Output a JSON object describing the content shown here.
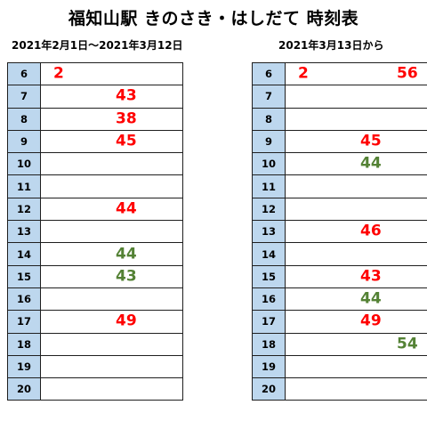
{
  "title": "福知山駅 きのさき・はしだて 時刻表",
  "colors": {
    "red": "#ff0000",
    "green": "#548235",
    "hour_bg": "#bdd7ee"
  },
  "timetables": [
    {
      "period": "2021年2月1日～2021年3月12日",
      "rows": [
        {
          "hour": "6",
          "departures": [
            {
              "minute": "2",
              "color": "red",
              "position": "first"
            }
          ]
        },
        {
          "hour": "7",
          "departures": [
            {
              "minute": "43",
              "color": "red",
              "position": "mid"
            }
          ]
        },
        {
          "hour": "8",
          "departures": [
            {
              "minute": "38",
              "color": "red",
              "position": "mid"
            }
          ]
        },
        {
          "hour": "9",
          "departures": [
            {
              "minute": "45",
              "color": "red",
              "position": "mid"
            }
          ]
        },
        {
          "hour": "10",
          "departures": []
        },
        {
          "hour": "11",
          "departures": []
        },
        {
          "hour": "12",
          "departures": [
            {
              "minute": "44",
              "color": "red",
              "position": "mid"
            }
          ]
        },
        {
          "hour": "13",
          "departures": []
        },
        {
          "hour": "14",
          "departures": [
            {
              "minute": "44",
              "color": "green",
              "position": "mid"
            }
          ]
        },
        {
          "hour": "15",
          "departures": [
            {
              "minute": "43",
              "color": "green",
              "position": "mid"
            }
          ]
        },
        {
          "hour": "16",
          "departures": []
        },
        {
          "hour": "17",
          "departures": [
            {
              "minute": "49",
              "color": "red",
              "position": "mid"
            }
          ]
        },
        {
          "hour": "18",
          "departures": []
        },
        {
          "hour": "19",
          "departures": []
        },
        {
          "hour": "20",
          "departures": []
        }
      ]
    },
    {
      "period": "2021年3月13日から",
      "rows": [
        {
          "hour": "6",
          "departures": [
            {
              "minute": "2",
              "color": "red",
              "position": "first"
            },
            {
              "minute": "56",
              "color": "red",
              "position": "right"
            }
          ]
        },
        {
          "hour": "7",
          "departures": []
        },
        {
          "hour": "8",
          "departures": []
        },
        {
          "hour": "9",
          "departures": [
            {
              "minute": "45",
              "color": "red",
              "position": "mid"
            }
          ]
        },
        {
          "hour": "10",
          "departures": [
            {
              "minute": "44",
              "color": "green",
              "position": "mid"
            }
          ]
        },
        {
          "hour": "11",
          "departures": []
        },
        {
          "hour": "12",
          "departures": []
        },
        {
          "hour": "13",
          "departures": [
            {
              "minute": "46",
              "color": "red",
              "position": "mid"
            }
          ]
        },
        {
          "hour": "14",
          "departures": []
        },
        {
          "hour": "15",
          "departures": [
            {
              "minute": "43",
              "color": "red",
              "position": "mid"
            }
          ]
        },
        {
          "hour": "16",
          "departures": [
            {
              "minute": "44",
              "color": "green",
              "position": "mid"
            }
          ]
        },
        {
          "hour": "17",
          "departures": [
            {
              "minute": "49",
              "color": "red",
              "position": "mid"
            }
          ]
        },
        {
          "hour": "18",
          "departures": [
            {
              "minute": "54",
              "color": "green",
              "position": "right"
            }
          ]
        },
        {
          "hour": "19",
          "departures": []
        },
        {
          "hour": "20",
          "departures": []
        }
      ]
    }
  ]
}
